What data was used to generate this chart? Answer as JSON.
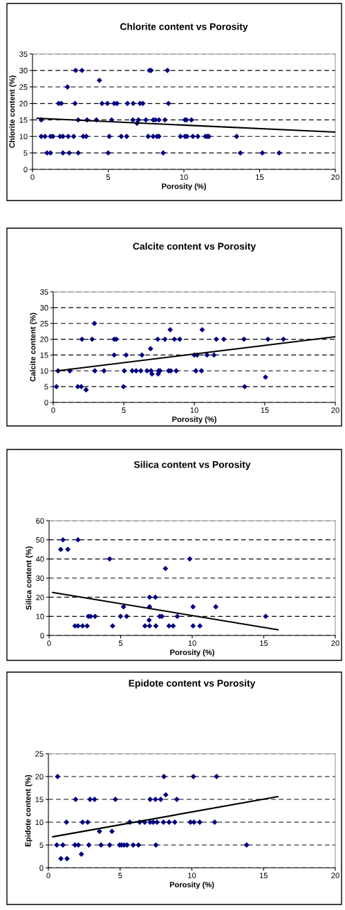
{
  "chart_data": [
    {
      "type": "scatter",
      "title": "Chlorite content vs Porosity",
      "xlabel": "Porosity (%)",
      "ylabel": "Chlorite content (%)",
      "xlim": [
        0,
        20
      ],
      "ylim": [
        0,
        35
      ],
      "xticks": [
        0,
        5,
        10,
        15,
        20
      ],
      "yticks": [
        0,
        5,
        10,
        15,
        20,
        25,
        30,
        35
      ],
      "grid": "y",
      "series": [
        {
          "marker": "diamond",
          "color": "#000080",
          "x": [
            2.85,
            3.27,
            7.72,
            7.84,
            8.91,
            4.42,
            2.31,
            1.72,
            1.9,
            2.81,
            4.59,
            4.95,
            5.4,
            5.58,
            6.27,
            6.65,
            7.1,
            7.29,
            8.98,
            0.58,
            3.02,
            3.6,
            4.22,
            5.23,
            6.63,
            7.0,
            7.49,
            7.97,
            8.12,
            8.35,
            8.75,
            10.07,
            10.17,
            10.5,
            6.9,
            0.58,
            0.83,
            1.19,
            1.35,
            1.82,
            2.01,
            2.36,
            2.72,
            3.35,
            3.55,
            5.07,
            5.86,
            6.22,
            7.64,
            7.97,
            8.22,
            8.35,
            9.77,
            10.07,
            10.2,
            10.59,
            10.92,
            11.42,
            11.55,
            11.65,
            13.48,
            0.96,
            1.19,
            2.01,
            2.43,
            3.02,
            5.0,
            8.63,
            13.73,
            15.18,
            16.29
          ],
          "values": [
            30,
            30,
            30,
            30,
            30,
            27,
            25,
            20,
            20,
            20,
            20,
            20,
            20,
            20,
            20,
            20,
            20,
            20,
            20,
            15,
            15,
            15,
            15,
            15,
            15,
            15,
            15,
            15,
            15,
            15,
            15,
            15,
            15,
            15,
            14,
            10,
            10,
            10,
            10,
            10,
            10,
            10,
            10,
            10,
            10,
            10,
            10,
            10,
            10,
            10,
            10,
            10,
            10,
            10,
            10,
            10,
            10,
            10,
            10,
            10,
            10,
            5,
            5,
            5,
            5,
            5,
            5,
            5,
            5,
            5,
            5
          ]
        },
        {
          "type": "line",
          "color": "#000000",
          "line_style": "solid",
          "x": [
            0.3,
            20
          ],
          "values": [
            15.5,
            11.3
          ]
        }
      ]
    },
    {
      "type": "scatter",
      "title": "Calcite content vs Porosity",
      "xlabel": "Porosity (%)",
      "ylabel": "Calcite content (%)",
      "xlim": [
        0,
        20
      ],
      "ylim": [
        0,
        35
      ],
      "xticks": [
        0,
        5,
        10,
        15,
        20
      ],
      "yticks": [
        0,
        5,
        10,
        15,
        20,
        25,
        30,
        35
      ],
      "grid": "y",
      "series": [
        {
          "marker": "diamond",
          "color": "#000080",
          "x": [
            2.92,
            8.29,
            10.56,
            2.04,
            2.76,
            4.32,
            4.47,
            7.41,
            7.92,
            8.59,
            8.97,
            11.56,
            12.09,
            13.52,
            15.22,
            16.32,
            6.9,
            4.32,
            5.17,
            6.29,
            10.0,
            10.2,
            10.9,
            11.4,
            0.34,
            1.18,
            2.95,
            3.6,
            5.04,
            5.6,
            5.88,
            6.21,
            6.65,
            6.93,
            7.46,
            7.57,
            8.18,
            8.34,
            8.72,
            10.11,
            10.51,
            7.0,
            7.44,
            15.05,
            0.23,
            1.74,
            1.99,
            4.98,
            13.57,
            2.33
          ],
          "values": [
            25,
            23,
            23,
            20,
            20,
            20,
            20,
            20,
            20,
            20,
            20,
            20,
            20,
            20,
            20,
            20,
            17,
            15,
            15,
            15,
            15,
            15,
            15,
            15,
            10,
            10,
            10,
            10,
            10,
            10,
            10,
            10,
            10,
            10,
            10,
            10,
            10,
            10,
            10,
            10,
            10,
            9,
            9,
            8,
            5,
            5,
            5,
            5,
            5,
            4
          ]
        },
        {
          "type": "line",
          "color": "#000000",
          "line_style": "solid",
          "x": [
            0.3,
            20
          ],
          "values": [
            10.0,
            20.8
          ]
        }
      ]
    },
    {
      "type": "scatter",
      "title": "Silica content vs Porosity",
      "xlabel": "Porosity (%)",
      "ylabel": "Silica content (%)",
      "xlim": [
        0,
        20
      ],
      "ylim": [
        0,
        60
      ],
      "xticks": [
        0,
        5,
        10,
        15,
        20
      ],
      "yticks": [
        0,
        10,
        20,
        30,
        40,
        50,
        60
      ],
      "grid": "y",
      "series": [
        {
          "marker": "diamond",
          "color": "#000080",
          "x": [
            0.97,
            2.02,
            0.81,
            1.31,
            4.23,
            9.83,
            8.13,
            7.02,
            7.43,
            5.2,
            7.02,
            10.06,
            11.65,
            2.74,
            2.9,
            3.21,
            4.99,
            5.42,
            7.73,
            7.88,
            8.96,
            15.13,
            6.99,
            1.81,
            2.02,
            2.34,
            2.66,
            4.44,
            6.7,
            7.02,
            7.46,
            8.38,
            8.67,
            10.06,
            10.54
          ],
          "values": [
            50,
            50,
            45,
            45,
            40,
            40,
            35,
            20,
            20,
            15,
            15,
            15,
            15,
            10,
            10,
            10,
            10,
            10,
            10,
            10,
            10,
            10,
            8,
            5,
            5,
            5,
            5,
            5,
            5,
            5,
            5,
            5,
            5,
            5,
            5
          ]
        },
        {
          "type": "line",
          "color": "#000000",
          "line_style": "solid",
          "x": [
            0.24,
            16
          ],
          "values": [
            22.5,
            3.0
          ]
        }
      ]
    },
    {
      "type": "scatter",
      "title": "Epidote content vs Porosity",
      "xlabel": "Porosity (%)",
      "ylabel": "Epidote content (%)",
      "xlim": [
        0,
        20
      ],
      "ylim": [
        0,
        25
      ],
      "xticks": [
        0,
        5,
        10,
        15,
        20
      ],
      "yticks": [
        0,
        5,
        10,
        15,
        20,
        25
      ],
      "grid": "y",
      "series": [
        {
          "marker": "diamond",
          "color": "#000080",
          "x": [
            0.64,
            8.05,
            10.11,
            11.72,
            8.18,
            1.9,
            2.9,
            3.22,
            4.67,
            7.09,
            7.46,
            7.83,
            8.95,
            1.26,
            2.38,
            2.74,
            5.67,
            6.36,
            6.71,
            7.09,
            7.31,
            7.57,
            8.02,
            8.41,
            8.81,
            9.9,
            10.15,
            10.55,
            11.59,
            3.56,
            4.43,
            0.58,
            1.01,
            1.85,
            2.09,
            2.82,
            3.67,
            4.27,
            4.96,
            5.1,
            5.28,
            5.48,
            5.91,
            6.28,
            7.49,
            13.82,
            2.3,
            0.87,
            1.3
          ],
          "values": [
            20,
            20,
            20,
            20,
            16,
            15,
            15,
            15,
            15,
            15,
            15,
            15,
            15,
            10,
            10,
            10,
            10,
            10,
            10,
            10,
            10,
            10,
            10,
            10,
            10,
            10,
            10,
            10,
            10,
            8,
            8,
            5,
            5,
            5,
            5,
            5,
            5,
            5,
            5,
            5,
            5,
            5,
            5,
            5,
            5,
            5,
            3,
            2,
            2
          ]
        },
        {
          "type": "line",
          "color": "#000000",
          "line_style": "solid",
          "x": [
            0.3,
            16
          ],
          "values": [
            6.8,
            15.6
          ]
        }
      ]
    }
  ]
}
